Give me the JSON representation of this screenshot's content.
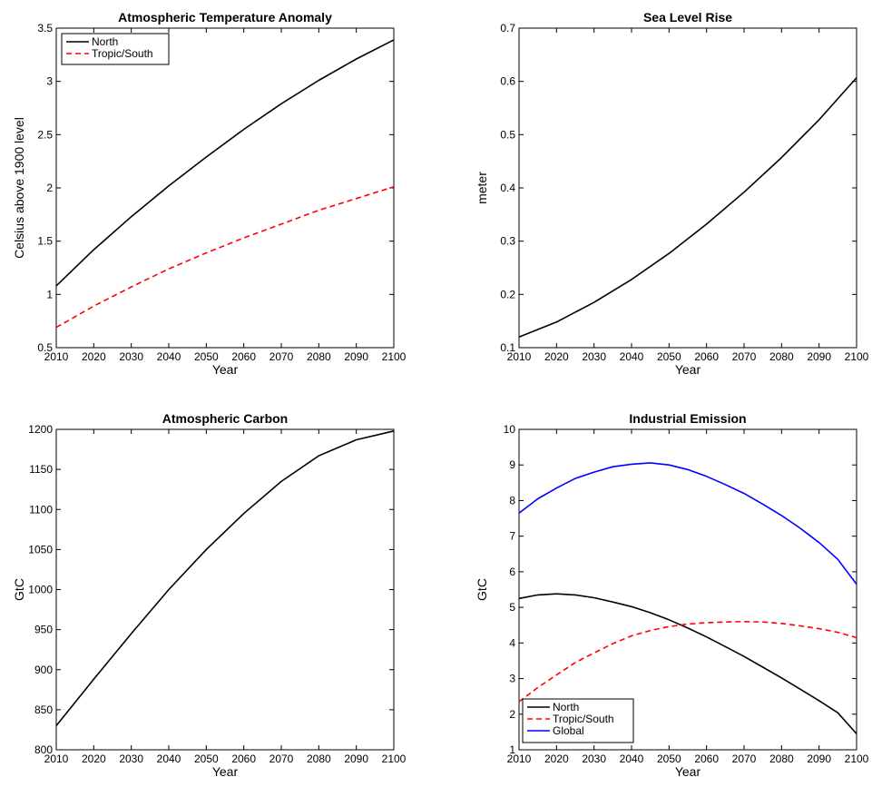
{
  "chart_data": [
    {
      "type": "line",
      "title": "Atmospheric Temperature Anomaly",
      "xlabel": "Year",
      "ylabel": "Celsius above 1900 level",
      "xlim": [
        2010,
        2100
      ],
      "ylim": [
        0.5,
        3.5
      ],
      "xticks": [
        "2010",
        "2020",
        "2030",
        "2040",
        "2050",
        "2060",
        "2070",
        "2080",
        "2090",
        "2100"
      ],
      "yticks": [
        "0.5",
        "1",
        "1.5",
        "2",
        "2.5",
        "3",
        "3.5"
      ],
      "legend": "top-left",
      "x": [
        2010,
        2020,
        2030,
        2040,
        2050,
        2060,
        2070,
        2080,
        2090,
        2100
      ],
      "series": [
        {
          "name": "North",
          "color": "#000000",
          "dash": "solid",
          "values": [
            1.08,
            1.42,
            1.73,
            2.02,
            2.29,
            2.55,
            2.79,
            3.01,
            3.21,
            3.39
          ]
        },
        {
          "name": "Tropic/South",
          "color": "#ff0000",
          "dash": "dashed",
          "values": [
            0.69,
            0.89,
            1.07,
            1.24,
            1.39,
            1.53,
            1.66,
            1.79,
            1.9,
            2.01
          ]
        }
      ]
    },
    {
      "type": "line",
      "title": "Sea Level Rise",
      "xlabel": "Year",
      "ylabel": "meter",
      "xlim": [
        2010,
        2100
      ],
      "ylim": [
        0.1,
        0.7
      ],
      "xticks": [
        "2010",
        "2020",
        "2030",
        "2040",
        "2050",
        "2060",
        "2070",
        "2080",
        "2090",
        "2100"
      ],
      "yticks": [
        "0.1",
        "0.2",
        "0.3",
        "0.4",
        "0.5",
        "0.6",
        "0.7"
      ],
      "legend": "none",
      "x": [
        2010,
        2020,
        2030,
        2040,
        2050,
        2060,
        2070,
        2080,
        2090,
        2100
      ],
      "series": [
        {
          "color": "#000000",
          "dash": "solid",
          "values": [
            0.12,
            0.148,
            0.185,
            0.228,
            0.277,
            0.332,
            0.392,
            0.457,
            0.528,
            0.607
          ]
        }
      ]
    },
    {
      "type": "line",
      "title": "Atmospheric Carbon",
      "xlabel": "Year",
      "ylabel": "GtC",
      "xlim": [
        2010,
        2100
      ],
      "ylim": [
        800,
        1200
      ],
      "xticks": [
        "2010",
        "2020",
        "2030",
        "2040",
        "2050",
        "2060",
        "2070",
        "2080",
        "2090",
        "2100"
      ],
      "yticks": [
        "800",
        "850",
        "900",
        "950",
        "1000",
        "1050",
        "1100",
        "1150",
        "1200"
      ],
      "legend": "none",
      "x": [
        2010,
        2020,
        2030,
        2040,
        2050,
        2060,
        2070,
        2080,
        2090,
        2100
      ],
      "series": [
        {
          "color": "#000000",
          "dash": "solid",
          "values": [
            830,
            888,
            945,
            1000,
            1050,
            1095,
            1135,
            1167,
            1187,
            1198
          ]
        }
      ]
    },
    {
      "type": "line",
      "title": "Industrial Emission",
      "xlabel": "Year",
      "ylabel": "GtC",
      "xlim": [
        2010,
        2100
      ],
      "ylim": [
        1,
        10
      ],
      "xticks": [
        "2010",
        "2020",
        "2030",
        "2040",
        "2050",
        "2060",
        "2070",
        "2080",
        "2090",
        "2100"
      ],
      "yticks": [
        "1",
        "2",
        "3",
        "4",
        "5",
        "6",
        "7",
        "8",
        "9",
        "10"
      ],
      "legend": "bottom-left",
      "x": [
        2010,
        2015,
        2020,
        2025,
        2030,
        2035,
        2040,
        2045,
        2050,
        2055,
        2060,
        2065,
        2070,
        2075,
        2080,
        2085,
        2090,
        2095,
        2100
      ],
      "series": [
        {
          "name": "North",
          "color": "#000000",
          "dash": "solid",
          "values": [
            5.25,
            5.35,
            5.38,
            5.35,
            5.27,
            5.15,
            5.02,
            4.85,
            4.65,
            4.42,
            4.17,
            3.9,
            3.62,
            3.32,
            3.02,
            2.7,
            2.38,
            2.04,
            1.45
          ]
        },
        {
          "name": "Tropic/South",
          "color": "#ff0000",
          "dash": "dashed",
          "values": [
            2.35,
            2.75,
            3.1,
            3.45,
            3.72,
            3.98,
            4.2,
            4.35,
            4.46,
            4.53,
            4.57,
            4.59,
            4.6,
            4.59,
            4.55,
            4.48,
            4.4,
            4.3,
            4.15
          ]
        },
        {
          "name": "Global",
          "color": "#0000ff",
          "dash": "solid",
          "values": [
            7.65,
            8.05,
            8.35,
            8.62,
            8.8,
            8.95,
            9.02,
            9.06,
            9.0,
            8.87,
            8.68,
            8.45,
            8.2,
            7.9,
            7.58,
            7.22,
            6.82,
            6.35,
            5.65
          ]
        }
      ]
    }
  ]
}
